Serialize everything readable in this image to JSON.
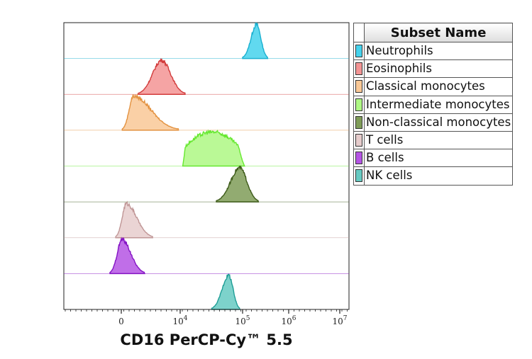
{
  "chart_data": {
    "type": "histogram-overlay",
    "xlabel": "CD16 PerCP-Cy™ 5.5",
    "x_scale": "biexponential",
    "xticks": [
      {
        "value": 0,
        "label": "0"
      },
      {
        "value": 10000,
        "label": "10",
        "exp": "4"
      },
      {
        "value": 100000,
        "label": "10",
        "exp": "5"
      },
      {
        "value": 1000000,
        "label": "10",
        "exp": "6"
      },
      {
        "value": 10000000,
        "label": "10",
        "exp": "7"
      }
    ],
    "legend_title": "Subset Name",
    "legend_placement": "right",
    "series": [
      {
        "name": "Neutrophils",
        "peak": 200000,
        "low": 100000,
        "high": 350000,
        "fill": "#45d2ec",
        "line": "#1ab0d0"
      },
      {
        "name": "Eosinophils",
        "peak": 3100,
        "low": 640,
        "high": 12000,
        "fill": "#f39494",
        "line": "#d23c3c"
      },
      {
        "name": "Classical monocytes",
        "peak": 420,
        "low": 30,
        "high": 9000,
        "fill": "#f9c896",
        "line": "#e39240"
      },
      {
        "name": "Intermediate monocytes",
        "peak": 56000,
        "low": 11000,
        "high": 110000,
        "fill": "#aef884",
        "line": "#66e830",
        "flat": true
      },
      {
        "name": "Non-classical monocytes",
        "peak": 90000,
        "low": 38000,
        "high": 220000,
        "fill": "#7f9c58",
        "line": "#3c5a18"
      },
      {
        "name": "T cells",
        "peak": 160,
        "low": -180,
        "high": 1750,
        "fill": "#e6cccc",
        "line": "#c09696"
      },
      {
        "name": "B cells",
        "peak": 22,
        "low": -385,
        "high": 1020,
        "fill": "#b555e4",
        "line": "#8414c4"
      },
      {
        "name": "NK cells",
        "peak": 60000,
        "low": 32000,
        "high": 90000,
        "fill": "#66cac2",
        "line": "#1f9e96"
      }
    ]
  }
}
